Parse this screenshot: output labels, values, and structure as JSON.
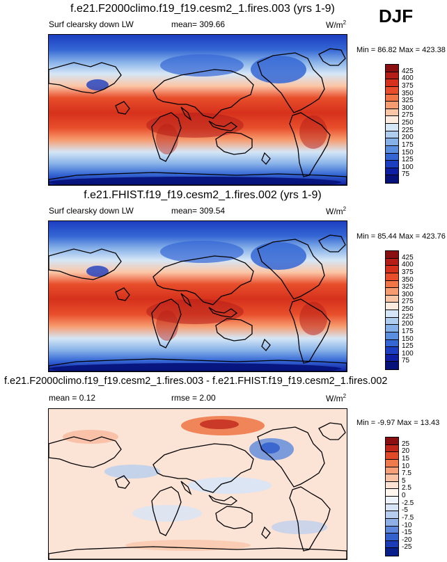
{
  "season": "DJF",
  "panels": [
    {
      "title": "f.e21.F2000climo.f19_f19.cesm2_1.fires.003 (yrs 1-9)",
      "variable": "Surf clearsky down LW",
      "stat_text": "mean= 309.66",
      "units": "W/m",
      "units_sup": "2",
      "minmax_text": "Min =  86.82 Max = 423.38",
      "colorbar": {
        "labels": [
          "425",
          "400",
          "375",
          "350",
          "325",
          "300",
          "275",
          "250",
          "225",
          "200",
          "175",
          "150",
          "125",
          "100",
          "75"
        ],
        "colors": [
          "#8a0f10",
          "#b51e17",
          "#d6311c",
          "#e84e2b",
          "#f07547",
          "#f79c70",
          "#fbc6a6",
          "#fdebe0",
          "#d5e6f6",
          "#afcdef",
          "#86b1e8",
          "#5a8ede",
          "#3567d4",
          "#1c3ec1",
          "#0e1fa3",
          "#061279"
        ]
      },
      "map_kind": "full"
    },
    {
      "title": "f.e21.FHIST.f19_f19.cesm2_1.fires.002 (yrs 1-9)",
      "variable": "Surf clearsky down LW",
      "stat_text": "mean= 309.54",
      "units": "W/m",
      "units_sup": "2",
      "minmax_text": "Min =  85.44 Max = 423.76",
      "colorbar": {
        "labels": [
          "425",
          "400",
          "375",
          "350",
          "325",
          "300",
          "275",
          "250",
          "225",
          "200",
          "175",
          "150",
          "125",
          "100",
          "75"
        ],
        "colors": [
          "#8a0f10",
          "#b51e17",
          "#d6311c",
          "#e84e2b",
          "#f07547",
          "#f79c70",
          "#fbc6a6",
          "#fdebe0",
          "#d5e6f6",
          "#afcdef",
          "#86b1e8",
          "#5a8ede",
          "#3567d4",
          "#1c3ec1",
          "#0e1fa3",
          "#061279"
        ]
      },
      "map_kind": "full"
    },
    {
      "title": "f.e21.F2000climo.f19_f19.cesm2_1.fires.003 - f.e21.FHIST.f19_f19.cesm2_1.fires.002",
      "stat_text": "mean =   0.12",
      "rmse_text": "rmse =   2.00",
      "units": "W/m",
      "units_sup": "2",
      "minmax_text": "Min =  -9.97 Max =  13.43",
      "colorbar": {
        "labels": [
          "25",
          "20",
          "15",
          "10",
          "7.5",
          "5",
          "2.5",
          "0",
          "-2.5",
          "-5",
          "-7.5",
          "-10",
          "-15",
          "-20",
          "-25"
        ],
        "colors": [
          "#8a0f10",
          "#c0261a",
          "#e04a28",
          "#ef7a4c",
          "#f6a07a",
          "#fac2a4",
          "#fde3d3",
          "#fff6f0",
          "#eef3fb",
          "#d7e4f6",
          "#b7cdef",
          "#8fb0e7",
          "#5d88dc",
          "#3462cd",
          "#1a3cb6",
          "#091f8c"
        ]
      },
      "map_kind": "diff"
    }
  ]
}
